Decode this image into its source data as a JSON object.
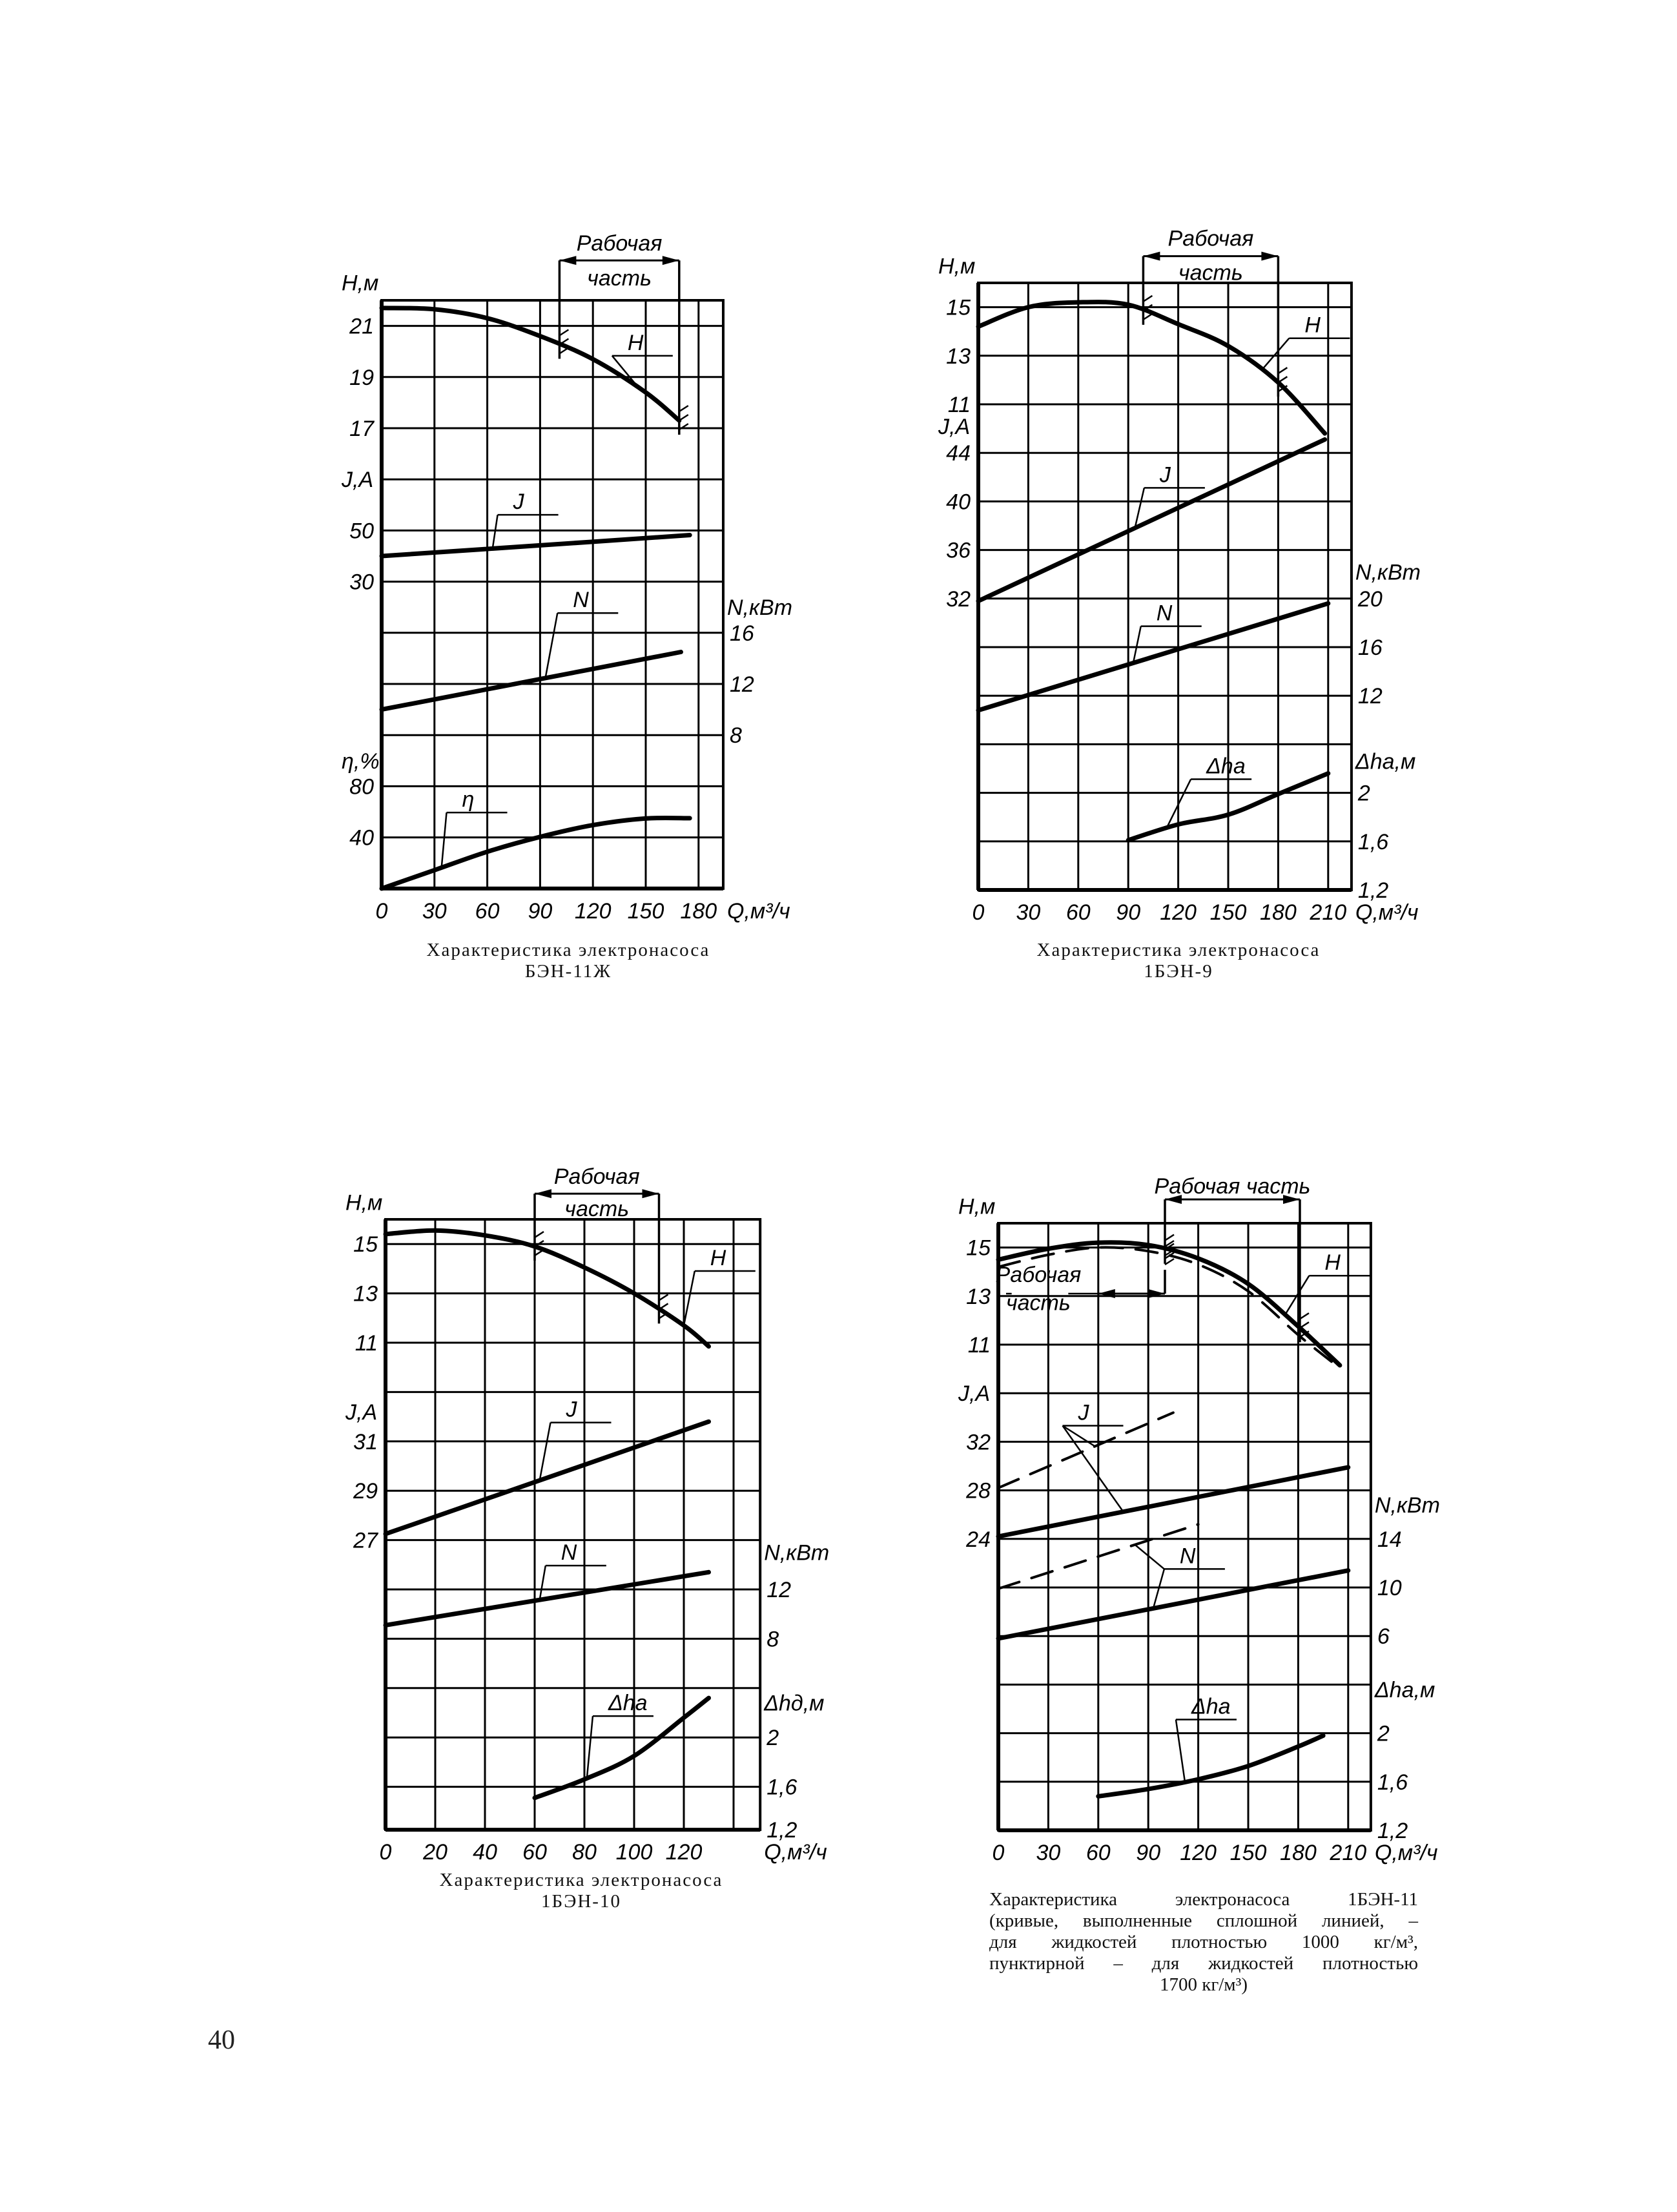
{
  "page_number": "40",
  "chart_data": [
    {
      "type": "line",
      "caption_lines": [
        "Характеристика электронасоса",
        "БЭН-11Ж"
      ],
      "xlabel": "Q,м³/ч",
      "xticks": [
        0,
        30,
        60,
        90,
        120,
        150,
        180
      ],
      "xlim": [
        0,
        194
      ],
      "grid": true,
      "axes": [
        {
          "id": "H",
          "label": "Н,м",
          "side": "left",
          "ticks": [
            21,
            19,
            17
          ]
        },
        {
          "id": "J",
          "label": "J,A",
          "side": "left",
          "ticks": [
            50,
            30
          ]
        },
        {
          "id": "N",
          "label": "N,кВт",
          "side": "right",
          "ticks": [
            16,
            12,
            8
          ]
        },
        {
          "id": "eta",
          "label": "η,%",
          "side": "left",
          "ticks": [
            80,
            40
          ]
        }
      ],
      "series": [
        {
          "name": "H",
          "axis": "H",
          "style": "solid",
          "x": [
            0,
            30,
            60,
            90,
            120,
            150,
            169
          ],
          "y": [
            21.7,
            21.65,
            21.3,
            20.6,
            19.7,
            18.4,
            17.3
          ]
        },
        {
          "name": "J",
          "axis": "J",
          "style": "solid",
          "x": [
            0,
            90,
            175
          ],
          "y": [
            40,
            44.2,
            48.2
          ]
        },
        {
          "name": "N",
          "axis": "N",
          "style": "solid",
          "x": [
            0,
            85,
            170
          ],
          "y": [
            10,
            12.25,
            14.5
          ]
        },
        {
          "name": "η",
          "axis": "eta",
          "style": "solid",
          "x": [
            0,
            30,
            60,
            90,
            120,
            150,
            175
          ],
          "y": [
            0,
            14.4,
            28.8,
            40.4,
            49.6,
            54.8,
            55
          ]
        }
      ],
      "working_ranges": [
        {
          "label_lines": [
            "Рабочая",
            "часть"
          ],
          "q": [
            101,
            169
          ]
        }
      ]
    },
    {
      "type": "line",
      "caption_lines": [
        "Характеристика электронасоса",
        "1БЭН-9"
      ],
      "xlabel": "Q,м³/ч",
      "xticks": [
        0,
        30,
        60,
        90,
        120,
        150,
        180,
        210
      ],
      "xlim": [
        0,
        224
      ],
      "grid": true,
      "axes": [
        {
          "id": "H",
          "label": "Н,м",
          "side": "left",
          "ticks": [
            15,
            13,
            11
          ]
        },
        {
          "id": "J",
          "label": "J,A",
          "side": "left",
          "ticks": [
            44,
            40,
            36,
            32
          ]
        },
        {
          "id": "N",
          "label": "N,кВт",
          "side": "right",
          "ticks": [
            20,
            16,
            12
          ]
        },
        {
          "id": "dh",
          "label": "Δhа,м",
          "side": "right",
          "ticks": [
            2,
            1.6,
            1.2
          ],
          "tick_labels": [
            "2",
            "1,6",
            "1,2"
          ]
        }
      ],
      "series": [
        {
          "name": "H",
          "axis": "H",
          "style": "solid",
          "x": [
            0,
            30,
            60,
            90,
            120,
            150,
            180,
            208
          ],
          "y": [
            14.2,
            15.0,
            15.2,
            15.1,
            14.3,
            13.4,
            11.9,
            9.8
          ]
        },
        {
          "name": "J",
          "axis": "J",
          "style": "solid",
          "x": [
            0,
            208
          ],
          "y": [
            31.8,
            45.1
          ]
        },
        {
          "name": "N",
          "axis": "N",
          "style": "solid",
          "x": [
            0,
            210
          ],
          "y": [
            10.8,
            19.6
          ]
        },
        {
          "name": "Δhа",
          "axis": "dh",
          "style": "solid",
          "x": [
            90,
            120,
            150,
            180,
            210
          ],
          "y": [
            1.61,
            1.74,
            1.82,
            1.99,
            2.16
          ]
        }
      ],
      "working_ranges": [
        {
          "label_lines": [
            "Рабочая",
            "часть"
          ],
          "q": [
            99,
            180
          ]
        }
      ]
    },
    {
      "type": "line",
      "caption_lines": [
        "Характеристика электронасоса",
        "1БЭН-10"
      ],
      "xlabel": "Q,м³/ч",
      "xticks": [
        0,
        20,
        40,
        60,
        80,
        100,
        120
      ],
      "xlim": [
        0,
        150.7
      ],
      "grid": true,
      "axes": [
        {
          "id": "H",
          "label": "Н,м",
          "side": "left",
          "ticks": [
            15,
            13,
            11
          ]
        },
        {
          "id": "J",
          "label": "J,A",
          "side": "left",
          "ticks": [
            31,
            29,
            27
          ]
        },
        {
          "id": "N",
          "label": "N,кВт",
          "side": "right",
          "ticks": [
            12,
            8
          ]
        },
        {
          "id": "dh",
          "label": "Δhд,м",
          "side": "right",
          "ticks": [
            2,
            1.6,
            1.2
          ],
          "tick_labels": [
            "2",
            "1,6",
            "1,2"
          ]
        }
      ],
      "series": [
        {
          "name": "H",
          "axis": "H",
          "style": "solid",
          "x": [
            0,
            20,
            40,
            60,
            80,
            100,
            120,
            130
          ],
          "y": [
            15.4,
            15.55,
            15.35,
            14.9,
            14.05,
            13.0,
            11.7,
            10.85
          ]
        },
        {
          "name": "J",
          "axis": "J",
          "style": "solid",
          "x": [
            0,
            130
          ],
          "y": [
            27.25,
            31.8
          ]
        },
        {
          "name": "N",
          "axis": "N",
          "style": "solid",
          "x": [
            0,
            130
          ],
          "y": [
            9.1,
            13.4
          ]
        },
        {
          "name": "Δhа",
          "axis": "dh",
          "style": "solid",
          "x": [
            60,
            80,
            100,
            120,
            130
          ],
          "y": [
            1.51,
            1.66,
            1.85,
            2.16,
            2.32
          ]
        }
      ],
      "working_ranges": [
        {
          "label_lines": [
            "Рабочая",
            "часть"
          ],
          "q": [
            60,
            110
          ]
        }
      ]
    },
    {
      "type": "line",
      "caption_lines": [
        "Характеристика электронасоса 1БЭН-11",
        "(кривые, выполненные сплошной линией, –",
        "для жидкостей плотностью 1000 кг/м³,",
        "пунктирной – для жидкостей плотностью",
        "1700 кг/м³)"
      ],
      "xlabel": "Q,м³/ч",
      "xticks": [
        0,
        30,
        60,
        90,
        120,
        150,
        180,
        210
      ],
      "xlim": [
        0,
        223.6
      ],
      "grid": true,
      "legend": {
        "solid": "1000 кг/м³",
        "dashed": "1700 кг/м³"
      },
      "axes": [
        {
          "id": "H",
          "label": "Н,м",
          "side": "left",
          "ticks": [
            15,
            13,
            11
          ]
        },
        {
          "id": "J",
          "label": "J,A",
          "side": "left",
          "ticks": [
            32,
            28,
            24
          ]
        },
        {
          "id": "N",
          "label": "N,кВт",
          "side": "right",
          "ticks": [
            14,
            10,
            6
          ]
        },
        {
          "id": "dh",
          "label": "Δhа,м",
          "side": "right",
          "ticks": [
            2,
            1.6,
            1.2
          ],
          "tick_labels": [
            "2",
            "1,6",
            "1,2"
          ]
        }
      ],
      "series": [
        {
          "name": "H",
          "axis": "H",
          "style": "solid",
          "x": [
            0,
            30,
            60,
            90,
            120,
            150,
            180,
            205
          ],
          "y": [
            14.5,
            14.95,
            15.2,
            15.1,
            14.55,
            13.5,
            11.75,
            10.15
          ]
        },
        {
          "name": "H (1700)",
          "axis": "H",
          "style": "dashed",
          "x": [
            0,
            30,
            60,
            90,
            120,
            150,
            180,
            200
          ],
          "y": [
            14.2,
            14.7,
            15.0,
            14.85,
            14.3,
            13.2,
            11.4,
            10.3
          ]
        },
        {
          "name": "J",
          "axis": "J",
          "style": "solid",
          "x": [
            0,
            210
          ],
          "y": [
            24.2,
            29.9
          ]
        },
        {
          "name": "J (1700)",
          "axis": "J",
          "style": "dashed",
          "x": [
            0,
            105
          ],
          "y": [
            28.2,
            34.4
          ]
        },
        {
          "name": "N",
          "axis": "N",
          "style": "solid",
          "x": [
            0,
            210
          ],
          "y": [
            5.8,
            11.4
          ]
        },
        {
          "name": "N (1700)",
          "axis": "N",
          "style": "dashed",
          "x": [
            0,
            120
          ],
          "y": [
            9.9,
            15.2
          ]
        },
        {
          "name": "Δhа",
          "axis": "dh",
          "style": "solid",
          "x": [
            60,
            90,
            120,
            150,
            180,
            195
          ],
          "y": [
            1.48,
            1.54,
            1.62,
            1.73,
            1.89,
            1.98
          ]
        }
      ],
      "working_ranges": [
        {
          "label_lines": [
            "Рабочая часть"
          ],
          "q": [
            100,
            181
          ]
        },
        {
          "label_lines": [
            "Рабочая",
            "часть"
          ],
          "q": [
            60,
            100
          ]
        }
      ]
    }
  ]
}
